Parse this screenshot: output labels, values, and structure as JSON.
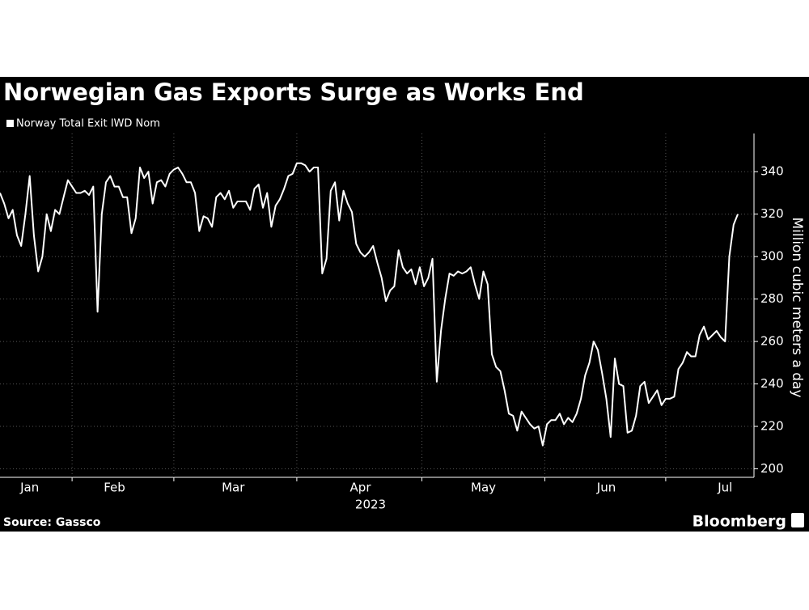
{
  "chart_data": {
    "type": "line",
    "title": "Norwegian Gas Exports Surge as Works End",
    "source": "Source: Gassco",
    "brand": "Bloomberg",
    "xlabel": "2023",
    "ylabel": "Million cubic meters a day",
    "categories": [
      null,
      null,
      null,
      null,
      null,
      null,
      null,
      "Jan",
      null,
      null,
      null,
      null,
      null,
      null,
      null,
      null,
      null,
      null,
      null,
      null,
      null,
      null,
      null,
      null,
      null,
      null,
      null,
      "Feb",
      null,
      null,
      null,
      null,
      null,
      null,
      null,
      null,
      null,
      null,
      null,
      null,
      null,
      null,
      null,
      null,
      null,
      null,
      null,
      null,
      null,
      null,
      null,
      null,
      null,
      null,
      null,
      "Mar",
      null,
      null,
      null,
      null,
      null,
      null,
      null,
      null,
      null,
      null,
      null,
      null,
      null,
      null,
      null,
      null,
      null,
      null,
      null,
      null,
      null,
      null,
      null,
      null,
      null,
      null,
      null,
      null,
      null,
      "Apr",
      null,
      null,
      null,
      null,
      null,
      null,
      null,
      null,
      null,
      null,
      null,
      null,
      null,
      null,
      null,
      null,
      null,
      null,
      null,
      null,
      null,
      null,
      null,
      null,
      null,
      null,
      null,
      null,
      "May",
      null,
      null,
      null,
      null,
      null,
      null,
      null,
      null,
      null,
      null,
      null,
      null,
      null,
      null,
      null,
      null,
      null,
      null,
      null,
      null,
      null,
      null,
      null,
      null,
      null,
      null,
      null,
      null,
      "Jun",
      null,
      null,
      null,
      null,
      null,
      null,
      null,
      null,
      null,
      null,
      null,
      null,
      null,
      null,
      null,
      null,
      null,
      null,
      null,
      null,
      null,
      null,
      null,
      null,
      null,
      null,
      null,
      "Jul",
      null,
      null,
      null
    ],
    "series": [
      {
        "name": "Norway Total Exit IWD Nom",
        "color": "#ffffff",
        "values": [
          330,
          325,
          318,
          322,
          310,
          305,
          320,
          338,
          310,
          293,
          300,
          320,
          312,
          322,
          320,
          328,
          336,
          333,
          330,
          330,
          331,
          329,
          333,
          274,
          320,
          335,
          338,
          333,
          333,
          328,
          328,
          311,
          318,
          342,
          337,
          340,
          325,
          335,
          336,
          333,
          339,
          341,
          342,
          339,
          335,
          335,
          330,
          312,
          319,
          318,
          314,
          328,
          330,
          327,
          331,
          323,
          326,
          326,
          326,
          322,
          332,
          334,
          323,
          330,
          314,
          324,
          327,
          332,
          338,
          339,
          344,
          344,
          343,
          340,
          342,
          342,
          292,
          299,
          331,
          335,
          317,
          331,
          325,
          321,
          306,
          302,
          300,
          302,
          305,
          297,
          290,
          279,
          284,
          286,
          303,
          295,
          292,
          294,
          287,
          295,
          286,
          290,
          299,
          241,
          265,
          280,
          292,
          291,
          293,
          292,
          293,
          295,
          287,
          280,
          293,
          287,
          254,
          248,
          246,
          237,
          226,
          225,
          218,
          227,
          224,
          221,
          219,
          220,
          211,
          221,
          223,
          223,
          226,
          221,
          224,
          222,
          226,
          233,
          244,
          250,
          260,
          256,
          245,
          233,
          215,
          252,
          240,
          239,
          217,
          218,
          225,
          239,
          241,
          231,
          234,
          237,
          230,
          233,
          233,
          234,
          247,
          250,
          255,
          253,
          253,
          263,
          267,
          261,
          263,
          265,
          262,
          260,
          300,
          315,
          320
        ]
      }
    ],
    "ylim": [
      196,
      358
    ],
    "yticks": [
      200,
      220,
      240,
      260,
      280,
      300,
      320,
      340
    ],
    "grid": true
  }
}
